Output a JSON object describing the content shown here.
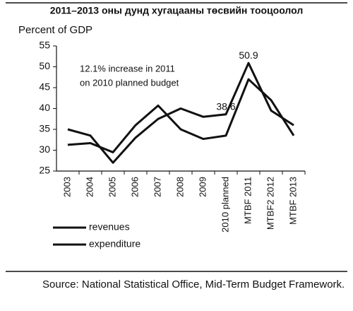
{
  "chart_data": {
    "type": "line",
    "title": "2011–2013 оны дунд хугацааны төсвийн тооцоолол",
    "y_label": "Percent of GDP",
    "annotation": [
      "12.1% increase in 2011",
      "on 2010 planned budget"
    ],
    "source": "Source: National Statistical Office, Mid-Term Budget Framework.",
    "categories": [
      "2003",
      "2004",
      "2005",
      "2006",
      "2007",
      "2008",
      "2009",
      "2010 planned",
      "MTBF 2011",
      "MTBF2 2012",
      "MTBF 2013"
    ],
    "series": [
      {
        "name": "revenues",
        "color": "#111111",
        "values": [
          35,
          33.5,
          27,
          33,
          37.5,
          40,
          38,
          38.6,
          50.9,
          39.5,
          36
        ],
        "value_labels": [
          null,
          null,
          null,
          null,
          null,
          null,
          null,
          "38.6",
          "50.9",
          null,
          null
        ]
      },
      {
        "name": "expenditure",
        "color": "#111111",
        "values": [
          31.3,
          31.7,
          29.5,
          36,
          40.7,
          35,
          32.7,
          33.5,
          47,
          42,
          33.5
        ]
      }
    ],
    "ylim": [
      25,
      55
    ],
    "yticks": [
      25,
      30,
      35,
      40,
      45,
      50,
      55
    ]
  }
}
